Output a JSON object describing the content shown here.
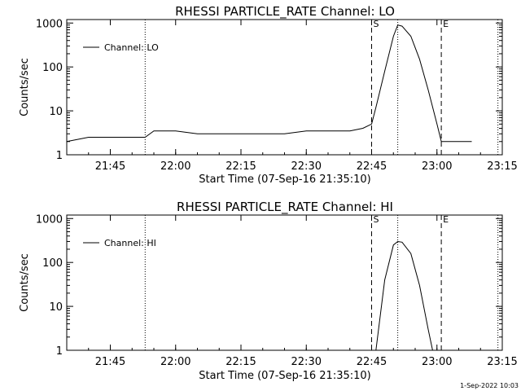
{
  "chart_data": [
    {
      "type": "line",
      "title": "RHESSI PARTICLE_RATE Channel: LO",
      "xlabel": "Start Time (07-Sep-16 21:35:10)",
      "ylabel": "Counts/sec",
      "y_scale": "log",
      "ylim": [
        1,
        1200
      ],
      "xlim": [
        "21:35",
        "23:15"
      ],
      "x_ticks": [
        "21:45",
        "22:00",
        "22:15",
        "22:30",
        "22:45",
        "23:00",
        "23:15"
      ],
      "y_ticks": [
        "1",
        "10",
        "100",
        "1000"
      ],
      "legend": {
        "label": "Channel: LO",
        "position": "top-left"
      },
      "markers": [
        {
          "label": "S",
          "time": "22:45",
          "style": "dashed"
        },
        {
          "label": "E",
          "time": "23:01",
          "style": "dashed"
        }
      ],
      "dotted_lines": [
        "21:53",
        "22:51",
        "23:14"
      ],
      "series": [
        {
          "x": [
            "21:35",
            "21:40",
            "21:45",
            "21:50",
            "21:53",
            "21:55",
            "22:00",
            "22:05",
            "22:10",
            "22:15",
            "22:20",
            "22:25",
            "22:30",
            "22:35",
            "22:40",
            "22:43",
            "22:45",
            "22:46",
            "22:48",
            "22:50",
            "22:51",
            "22:52",
            "22:54",
            "22:56",
            "22:58",
            "23:00",
            "23:01",
            "23:02",
            "23:05",
            "23:08"
          ],
          "values": [
            2,
            2.5,
            2.5,
            2.5,
            2.5,
            3.5,
            3.5,
            3,
            3,
            3,
            3,
            3,
            3.5,
            3.5,
            3.5,
            4,
            5,
            12,
            80,
            500,
            900,
            850,
            500,
            150,
            30,
            5,
            2,
            2,
            2,
            2
          ]
        }
      ]
    },
    {
      "type": "line",
      "title": "RHESSI PARTICLE_RATE Channel: HI",
      "xlabel": "Start Time (07-Sep-16 21:35:10)",
      "ylabel": "Counts/sec",
      "y_scale": "log",
      "ylim": [
        1,
        1200
      ],
      "xlim": [
        "21:35",
        "23:15"
      ],
      "x_ticks": [
        "21:45",
        "22:00",
        "22:15",
        "22:30",
        "22:45",
        "23:00",
        "23:15"
      ],
      "y_ticks": [
        "1",
        "10",
        "100",
        "1000"
      ],
      "legend": {
        "label": "Channel: HI",
        "position": "top-left"
      },
      "markers": [
        {
          "label": "S",
          "time": "22:45",
          "style": "dashed"
        },
        {
          "label": "E",
          "time": "23:01",
          "style": "dashed"
        }
      ],
      "dotted_lines": [
        "21:53",
        "22:51",
        "23:14"
      ],
      "series": [
        {
          "x": [
            "22:46",
            "22:48",
            "22:50",
            "22:51",
            "22:52",
            "22:54",
            "22:56",
            "22:58",
            "22:59"
          ],
          "values": [
            1,
            40,
            250,
            300,
            290,
            160,
            30,
            3,
            1
          ]
        }
      ]
    }
  ],
  "footer": {
    "timestamp": "1-Sep-2022 10:03"
  }
}
